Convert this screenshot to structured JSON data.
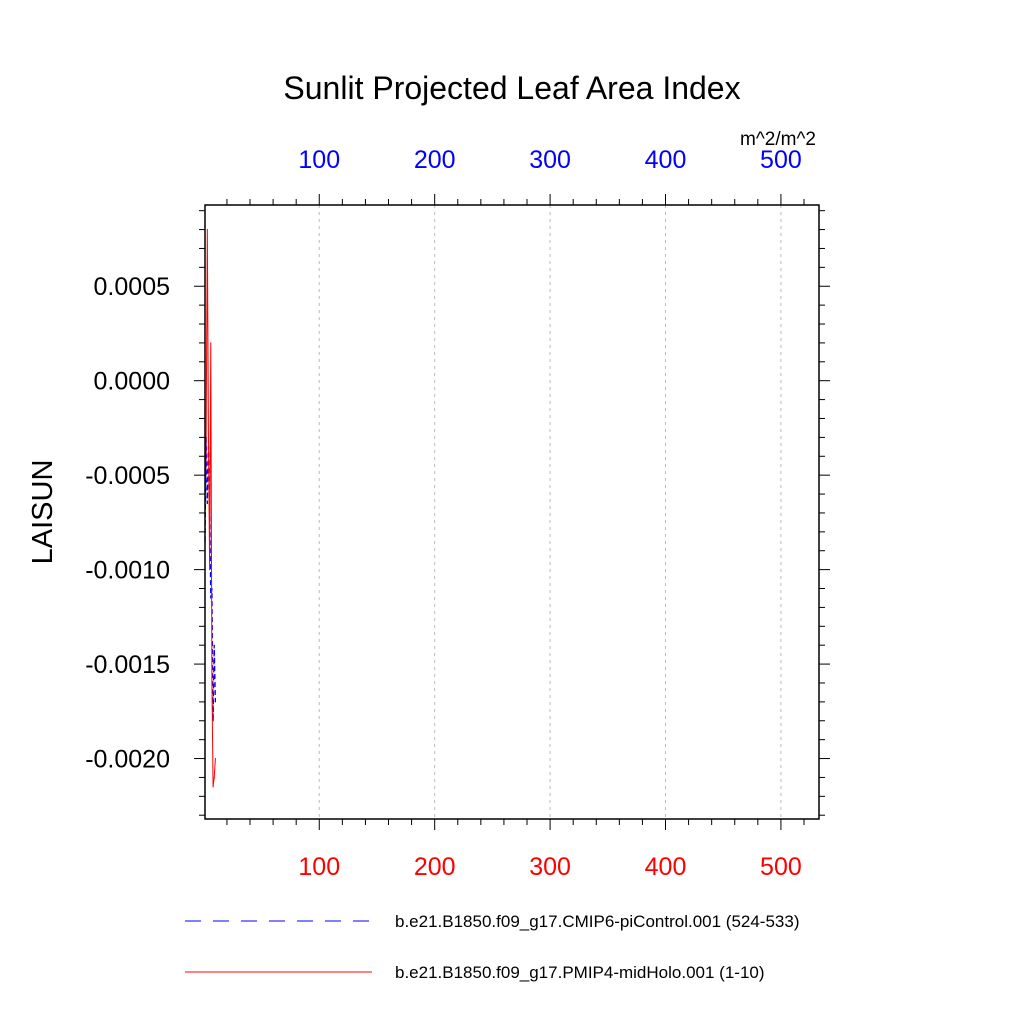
{
  "chart_data": {
    "type": "line",
    "title": "Sunlit Projected Leaf Area Index",
    "ylabel": "LAISUN",
    "units": "m^2/m^2",
    "xlim": [
      1,
      533
    ],
    "ylim": [
      -0.00232,
      0.00093
    ],
    "top_axis": {
      "ticks": [
        100,
        200,
        300,
        400,
        500
      ],
      "labels": [
        "100",
        "200",
        "300",
        "400",
        "500"
      ],
      "color": "#0000ff"
    },
    "bottom_axis": {
      "ticks": [
        100,
        200,
        300,
        400,
        500
      ],
      "labels": [
        "100",
        "200",
        "300",
        "400",
        "500"
      ],
      "color": "#ff0000"
    },
    "y_ticks": [
      0.0005,
      0.0,
      -0.0005,
      -0.001,
      -0.0015,
      -0.002
    ],
    "y_tick_labels": [
      "0.0005",
      "0.0000",
      "-0.0005",
      "-0.0010",
      "-0.0015",
      "-0.0020"
    ],
    "grid": "vertical dashed at major x ticks",
    "legend_position": "bottom",
    "series": [
      {
        "name": "b.e21.B1850.f09_g17.CMIP6-piControl.001 (524-533)",
        "color": "#0000ff",
        "dash": "dashed",
        "x": [
          1,
          2,
          3,
          4,
          5,
          6,
          7,
          8,
          9,
          10
        ],
        "y": [
          -0.00085,
          -0.0003,
          -0.00065,
          -0.00035,
          -0.0006,
          -0.00115,
          -0.0011,
          -0.0018,
          -0.0014,
          -0.0017
        ]
      },
      {
        "name": "b.e21.B1850.f09_g17.PMIP4-midHolo.001 (1-10)",
        "color": "#ff0000",
        "dash": "solid",
        "x": [
          1,
          2,
          3,
          4,
          5,
          6,
          7,
          8,
          9,
          10
        ],
        "y": [
          -0.0007,
          -0.0003,
          0.0008,
          -0.0003,
          -0.001,
          0.0002,
          -0.0016,
          -0.00215,
          -0.0021,
          -0.002
        ]
      }
    ]
  }
}
